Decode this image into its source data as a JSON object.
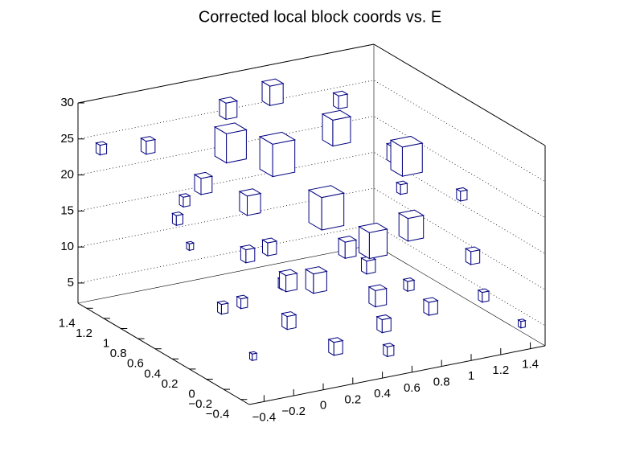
{
  "chart_data": {
    "type": "box3d",
    "title": "Corrected local block coords vs. E",
    "xlim": [
      -0.5,
      1.5
    ],
    "ylim": [
      -0.5,
      1.5
    ],
    "zlim": [
      2.2,
      30
    ],
    "xticks": [
      {
        "value": -0.4,
        "label": "−0.4"
      },
      {
        "value": -0.2,
        "label": "−0.2"
      },
      0,
      0.2,
      0.4,
      0.6,
      0.8,
      1,
      1.2,
      1.4
    ],
    "yticks": [
      {
        "value": -0.4,
        "label": "−0.4"
      },
      {
        "value": -0.2,
        "label": "−0.2"
      },
      0,
      0.2,
      0.4,
      0.6,
      0.8,
      1,
      1.2,
      1.4
    ],
    "zticks": [
      5,
      10,
      15,
      20,
      25,
      30
    ],
    "grid": true,
    "color": "#000080",
    "boxes": {
      "x": [
        0.3,
        0.5,
        0.9,
        1.2,
        0.6,
        0.2,
        0.8,
        1.0,
        0.0,
        1.3,
        -0.2,
        0.4,
        1.1,
        0.7,
        0.1,
        1.4,
        -0.3,
        0.3,
        0.6,
        0.9,
        1.2,
        0.0,
        -0.2,
        0.2,
        0.5,
        0.8,
        1.3,
        -0.4,
        0.4,
        1.0,
        -0.1,
        0.7,
        1.1,
        0.3,
        1.4,
        0.0,
        -0.3,
        1.4,
        0.6,
        0.2
      ],
      "y": [
        1.1,
        0.9,
        0.9,
        0.6,
        0.5,
        0.7,
        0.3,
        0.2,
        0.9,
        0.9,
        1.2,
        1.3,
        1.2,
        1.3,
        0.3,
        0.3,
        0.6,
        0.1,
        -0.1,
        -0.2,
        -0.3,
        -0.1,
        0.1,
        -0.3,
        -0.4,
        0.6,
        0.0,
        1.4,
        0.6,
        0.7,
        0.5,
        0.0,
        0.4,
        0.9,
        1.0,
        1.2,
        -0.2,
        -0.4,
        1.0,
        1.4
      ],
      "z": [
        24,
        23,
        25,
        22,
        18,
        19,
        14,
        16,
        21,
        20,
        25,
        27,
        26,
        28,
        16,
        18,
        22,
        12,
        10,
        8,
        9,
        9,
        11,
        6,
        5,
        11,
        12,
        24,
        8,
        7,
        7,
        5,
        6,
        10,
        14,
        14,
        6,
        5,
        4,
        8
      ],
      "values": [
        9,
        10,
        8,
        9,
        10,
        6,
        8,
        7,
        5,
        5,
        4,
        5,
        4,
        6,
        4,
        3,
        3,
        6,
        5,
        4,
        3,
        4,
        3,
        4,
        3,
        5,
        4,
        3,
        5,
        4,
        3,
        4,
        3,
        4,
        3,
        3,
        2,
        2,
        3,
        2
      ]
    }
  }
}
